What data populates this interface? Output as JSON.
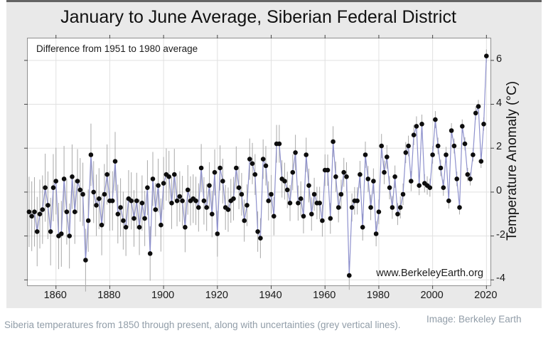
{
  "page": {
    "caption": "Siberia temperatures from 1850 through present, along with uncertainties (grey vertical lines).",
    "image_credit": "Image: Berkeley Earth"
  },
  "figure": {
    "title": "January to June Average, Siberian Federal District",
    "annotation": "Difference from 1951 to 1980 average",
    "watermark": "www.BerkeleyEarth.org",
    "y_axis_label": "Temperature Anomaly (°C)"
  },
  "colors": {
    "figure_bg": "#e9e9e9",
    "plot_bg": "#ffffff",
    "grid": "#e0e0e0",
    "axis_border": "#8f8f8f",
    "tick": "#444444",
    "line": "#8e91cd",
    "marker": "#0d0d0d",
    "error_bar": "#a9a9a9",
    "caption_text": "#919da8",
    "title_text": "#111111"
  },
  "chart_data": {
    "type": "line",
    "title": "January to June Average, Siberian Federal District",
    "subtitle": "Difference from 1951 to 1980 average",
    "xlabel": "",
    "ylabel": "Temperature Anomaly (°C)",
    "legend": "none",
    "grid": true,
    "xlim": [
      1849.5,
      2021.5
    ],
    "ylim": [
      -4.25,
      7.0
    ],
    "x_ticks": [
      1860,
      1880,
      1900,
      1920,
      1940,
      1960,
      1980,
      2000,
      2020
    ],
    "y_ticks": [
      6,
      4,
      2,
      0,
      -2,
      -4
    ],
    "x_start_year": 1850,
    "x_step": 1,
    "values": [
      -0.9,
      -1.1,
      -0.9,
      -1.8,
      -1.0,
      -0.8,
      0.2,
      -0.6,
      -1.8,
      0.2,
      0.5,
      -2.0,
      -1.9,
      0.6,
      -0.9,
      -2.0,
      0.7,
      -0.9,
      0.5,
      0.1,
      -0.1,
      -3.1,
      -1.3,
      1.7,
      0.0,
      -0.6,
      -0.3,
      -1.5,
      -0.1,
      0.8,
      -0.4,
      -0.4,
      1.4,
      -1.0,
      -0.7,
      -1.3,
      -1.6,
      -0.3,
      -0.4,
      -1.2,
      -0.4,
      -1.6,
      -0.5,
      -1.2,
      0.2,
      -2.8,
      0.6,
      -0.8,
      0.3,
      -1.5,
      0.4,
      0.8,
      0.7,
      -0.5,
      0.8,
      -0.4,
      -0.2,
      -0.4,
      -1.6,
      0.1,
      -0.4,
      -0.3,
      -0.4,
      -0.7,
      1.1,
      -0.4,
      -0.7,
      0.3,
      -1.0,
      0.9,
      -1.9,
      1.1,
      0.5,
      -0.7,
      -0.8,
      -0.4,
      -0.3,
      1.1,
      0.2,
      -0.1,
      -1.3,
      -0.6,
      1.5,
      1.3,
      0.8,
      -1.8,
      -2.1,
      1.5,
      1.2,
      -0.4,
      -0.1,
      -1.1,
      2.2,
      2.2,
      0.6,
      0.5,
      0.1,
      -0.5,
      0.9,
      1.8,
      -0.5,
      -0.3,
      -1.1,
      1.7,
      0.3,
      -1.0,
      -0.1,
      -0.5,
      -0.5,
      -1.3,
      1.0,
      1.0,
      -1.2,
      2.3,
      0.7,
      -0.7,
      -0.1,
      0.9,
      0.7,
      -3.8,
      -0.7,
      -0.4,
      -0.4,
      0.8,
      -1.6,
      1.7,
      0.6,
      -0.7,
      0.5,
      -1.9,
      -0.9,
      2.1,
      0.9,
      1.6,
      0.2,
      -0.7,
      0.7,
      -1.0,
      -0.7,
      -0.1,
      1.8,
      2.1,
      0.5,
      2.6,
      3.0,
      0.3,
      3.1,
      0.4,
      0.3,
      0.2,
      1.7,
      3.3,
      2.1,
      1.1,
      0.2,
      1.7,
      -0.4,
      2.8,
      2.1,
      0.6,
      -0.7,
      3.0,
      2.2,
      0.8,
      0.6,
      1.7,
      3.6,
      3.9,
      1.4,
      3.1,
      6.2
    ],
    "uncertainty": [
      1.6,
      1.59,
      1.58,
      1.58,
      1.57,
      1.56,
      1.55,
      1.54,
      1.54,
      1.53,
      1.52,
      1.51,
      1.5,
      1.5,
      1.49,
      1.48,
      1.47,
      1.46,
      1.46,
      1.45,
      1.44,
      1.43,
      1.42,
      1.42,
      1.41,
      1.4,
      1.39,
      1.38,
      1.38,
      1.37,
      1.36,
      1.35,
      1.34,
      1.34,
      1.33,
      1.32,
      1.31,
      1.3,
      1.3,
      1.29,
      1.28,
      1.27,
      1.26,
      1.26,
      1.25,
      1.24,
      1.23,
      1.22,
      1.22,
      1.21,
      1.2,
      1.19,
      1.18,
      1.18,
      1.17,
      1.16,
      1.15,
      1.14,
      1.14,
      1.13,
      1.12,
      1.11,
      1.1,
      1.1,
      1.09,
      1.08,
      1.07,
      1.06,
      1.06,
      1.05,
      1.04,
      1.03,
      1.02,
      1.02,
      1.01,
      1.0,
      0.99,
      0.98,
      0.98,
      0.97,
      0.96,
      0.95,
      0.94,
      0.94,
      0.93,
      0.92,
      0.91,
      0.9,
      0.9,
      0.89,
      0.88,
      0.87,
      0.86,
      0.86,
      0.85,
      0.84,
      0.83,
      0.82,
      0.82,
      0.81,
      0.8,
      0.79,
      0.78,
      0.78,
      0.77,
      0.76,
      0.75,
      0.74,
      0.74,
      0.73,
      0.72,
      0.71,
      0.7,
      0.7,
      0.69,
      0.68,
      0.67,
      0.66,
      0.66,
      0.65,
      0.64,
      0.63,
      0.62,
      0.62,
      0.61,
      0.6,
      0.59,
      0.58,
      0.58,
      0.57,
      0.56,
      0.55,
      0.54,
      0.54,
      0.53,
      0.52,
      0.51,
      0.5,
      0.5,
      0.49,
      0.48,
      0.47,
      0.46,
      0.46,
      0.45,
      0.44,
      0.43,
      0.42,
      0.42,
      0.41,
      0.4,
      0.39,
      0.38,
      0.38,
      0.37,
      0.36,
      0.35,
      0.34,
      0.34,
      0.33,
      0.32,
      0.31,
      0.3,
      0.3,
      0.3,
      0.3,
      0.3,
      0.3,
      0.3,
      0.3,
      0.3
    ],
    "annotations": [
      "Difference from 1951 to 1980 average",
      "www.BerkeleyEarth.org"
    ]
  }
}
